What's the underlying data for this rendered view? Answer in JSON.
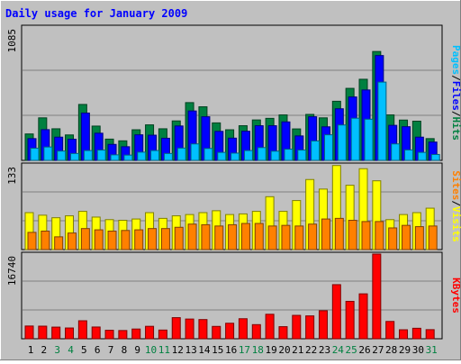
{
  "chart_data": {
    "type": "bar",
    "title": "Daily usage for January 2009",
    "days": [
      "1",
      "2",
      "3",
      "4",
      "5",
      "6",
      "7",
      "8",
      "9",
      "10",
      "11",
      "12",
      "13",
      "14",
      "15",
      "16",
      "17",
      "18",
      "19",
      "20",
      "21",
      "22",
      "23",
      "24",
      "25",
      "26",
      "27",
      "28",
      "29",
      "30",
      "31"
    ],
    "weekend_days": [
      "3",
      "4",
      "10",
      "11",
      "17",
      "18",
      "24",
      "25",
      "31"
    ],
    "panels": [
      {
        "id": "hits",
        "max_label": "1085",
        "ymax": 1085,
        "right_label": {
          "parts": [
            {
              "text": "Pages",
              "color": "#00c0ff"
            },
            {
              "text": "/",
              "color": "#000000"
            },
            {
              "text": "Files",
              "color": "#0000ff"
            },
            {
              "text": "/",
              "color": "#000000"
            },
            {
              "text": "Hits",
              "color": "#008040"
            }
          ]
        },
        "series": [
          {
            "name": "Hits",
            "color": "#008040",
            "values": [
              215,
              346,
              257,
              207,
              455,
              279,
              173,
              159,
              249,
              289,
              257,
              321,
              470,
              436,
              305,
              249,
              282,
              329,
              342,
              370,
              256,
              374,
              346,
              481,
              586,
              660,
              886,
              370,
              328,
              319,
              177
            ]
          },
          {
            "name": "Files",
            "color": "#0000ff",
            "values": [
              177,
              250,
              189,
              172,
              385,
              221,
              130,
              111,
              208,
              205,
              180,
              280,
              402,
              355,
              236,
              181,
              237,
              282,
              282,
              313,
              199,
              355,
              273,
              420,
              516,
              573,
              853,
              285,
              274,
              189,
              149
            ]
          },
          {
            "name": "Pages",
            "color": "#00c0ff",
            "values": [
              99,
              109,
              76,
              56,
              80,
              84,
              45,
              43,
              67,
              80,
              56,
              100,
              134,
              97,
              65,
              59,
              80,
              104,
              75,
              91,
              84,
              158,
              208,
              288,
              343,
              335,
              637,
              134,
              85,
              65,
              48
            ]
          }
        ]
      },
      {
        "id": "visits",
        "max_label": "133",
        "ymax": 133,
        "right_label": {
          "parts": [
            {
              "text": "Sites",
              "color": "#ff8000"
            },
            {
              "text": "/",
              "color": "#000000"
            },
            {
              "text": "Visits",
              "color": "#ffff00"
            }
          ]
        },
        "series": [
          {
            "name": "Visits",
            "color": "#ffff00",
            "values": [
              58,
              54,
              50,
              53,
              60,
              51,
              47,
              46,
              48,
              58,
              49,
              53,
              55,
              58,
              61,
              55,
              56,
              60,
              83,
              60,
              77,
              110,
              95,
              132,
              101,
              127,
              108,
              47,
              55,
              58,
              65
            ]
          },
          {
            "name": "Sites",
            "color": "#ff8000",
            "values": [
              27,
              29,
              20,
              26,
              33,
              31,
              29,
              30,
              31,
              33,
              33,
              35,
              40,
              39,
              37,
              39,
              41,
              41,
              37,
              38,
              37,
              40,
              48,
              49,
              46,
              44,
              44,
              34,
              38,
              36,
              37
            ]
          }
        ]
      },
      {
        "id": "kbytes",
        "max_label": "16740",
        "ymax": 16740,
        "right_label": {
          "parts": [
            {
              "text": "KBytes",
              "color": "#ff0000"
            }
          ]
        },
        "series": [
          {
            "name": "KBytes",
            "color": "#ff0000",
            "values": [
              2519,
              2492,
              2303,
              2131,
              3559,
              2324,
              1678,
              1629,
              1925,
              2461,
              1722,
              4174,
              3898,
              3796,
              2445,
              3069,
              3962,
              2794,
              4843,
              2391,
              4627,
              4523,
              5539,
              10695,
              7396,
              8880,
              16740,
              3424,
              1779,
              2075,
              1801
            ]
          }
        ]
      }
    ]
  }
}
